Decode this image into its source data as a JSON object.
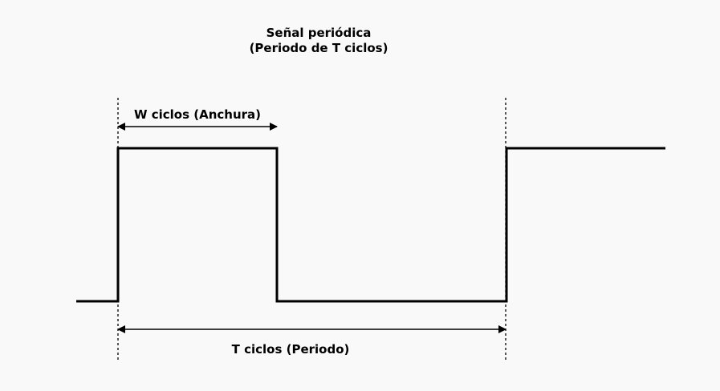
{
  "diagram": {
    "title_line1": "Señal periódica",
    "title_line2": "(Periodo de T ciclos)",
    "width_label": "W ciclos (Anchura)",
    "period_label": "T ciclos (Periodo)"
  },
  "colors": {
    "background": "#f9f9f9",
    "stroke": "#000000"
  }
}
